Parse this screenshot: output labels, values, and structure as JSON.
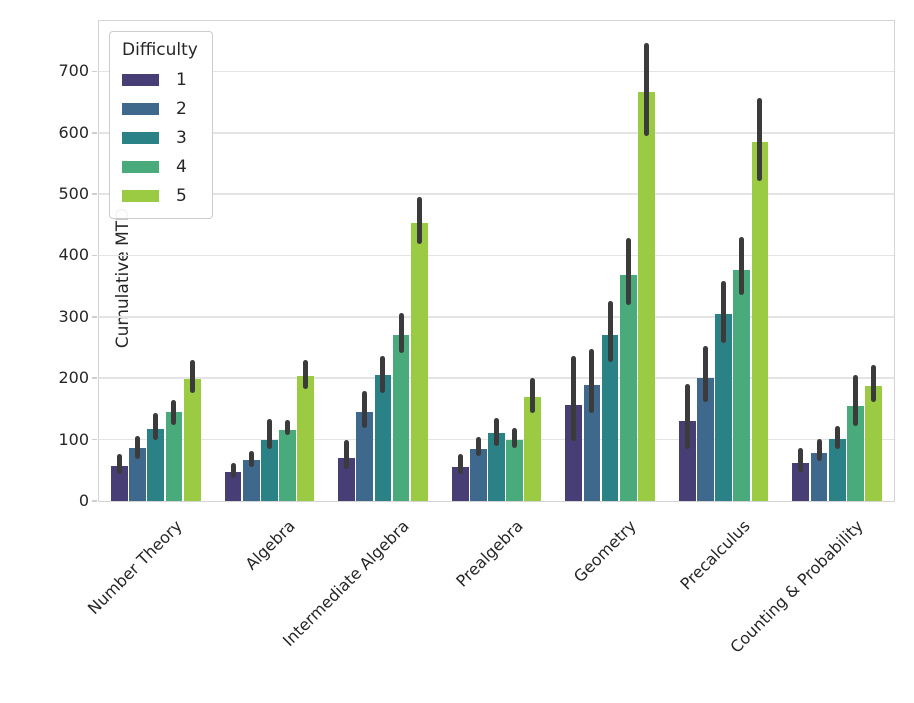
{
  "chart_data": {
    "type": "bar",
    "title": "",
    "xlabel": "",
    "ylabel": "Cumulative MTD",
    "legend_title": "Difficulty",
    "legend_position": "upper left",
    "grid": true,
    "ylim": [
      0,
      782
    ],
    "yticks": [
      0,
      100,
      200,
      300,
      400,
      500,
      600,
      700
    ],
    "categories": [
      "Number Theory",
      "Algebra",
      "Intermediate Algebra",
      "Prealgebra",
      "Geometry",
      "Precalculus",
      "Counting & Probability"
    ],
    "series": [
      {
        "name": "1",
        "color": "#463e75",
        "values": [
          57,
          48,
          70,
          56,
          156,
          131,
          62
        ],
        "err_low": [
          44,
          37,
          52,
          44,
          98,
          84,
          48
        ],
        "err_high": [
          77,
          62,
          100,
          76,
          237,
          191,
          86
        ]
      },
      {
        "name": "2",
        "color": "#3e698d",
        "values": [
          86,
          67,
          145,
          84,
          189,
          200,
          78
        ],
        "err_low": [
          68,
          55,
          119,
          73,
          143,
          162,
          65
        ],
        "err_high": [
          106,
          82,
          180,
          104,
          247,
          252,
          101
        ]
      },
      {
        "name": "3",
        "color": "#2b8286",
        "values": [
          118,
          99,
          206,
          110,
          271,
          304,
          101
        ],
        "err_low": [
          100,
          84,
          176,
          89,
          227,
          257,
          84
        ],
        "err_high": [
          143,
          134,
          237,
          136,
          326,
          358,
          123
        ]
      },
      {
        "name": "4",
        "color": "#49ab7c",
        "values": [
          145,
          115,
          270,
          99,
          369,
          377,
          154
        ],
        "err_low": [
          124,
          107,
          241,
          87,
          320,
          336,
          122
        ],
        "err_high": [
          165,
          132,
          306,
          119,
          429,
          430,
          206
        ]
      },
      {
        "name": "5",
        "color": "#9bca43",
        "values": [
          199,
          203,
          453,
          169,
          667,
          585,
          188
        ],
        "err_low": [
          176,
          182,
          418,
          144,
          595,
          521,
          162
        ],
        "err_high": [
          229,
          230,
          495,
          200,
          746,
          657,
          222
        ]
      }
    ],
    "error_bar_color": "#3b3b3b",
    "grid_color": "#e4e4e4",
    "spine_color": "#d4d4d4",
    "tick_label_color": "#262626"
  }
}
